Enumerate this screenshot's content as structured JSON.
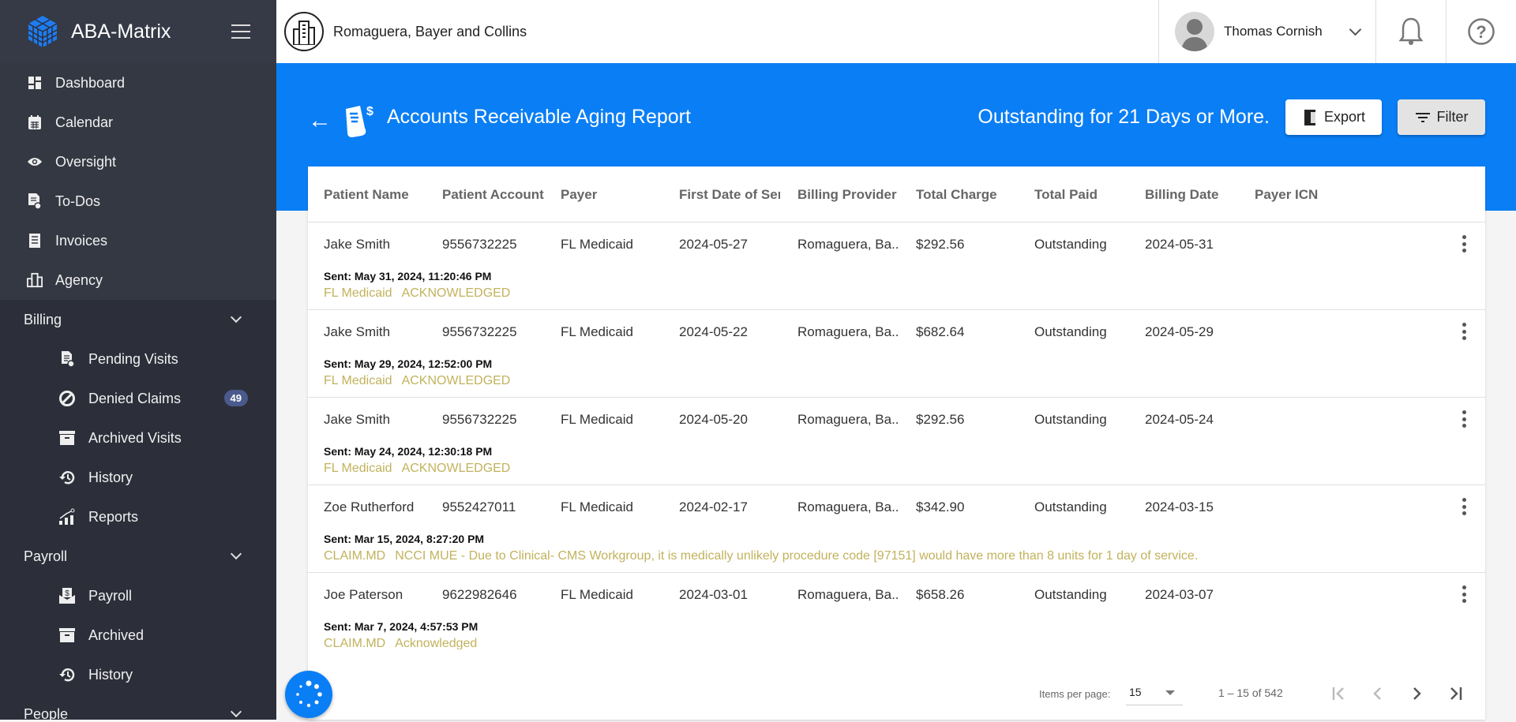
{
  "app": {
    "name": "ABA-Matrix",
    "brand_color": "#0a7ef5"
  },
  "sidebar": {
    "top_items": [
      {
        "label": "Dashboard",
        "icon": "dashboard-icon"
      },
      {
        "label": "Calendar",
        "icon": "calendar-icon"
      },
      {
        "label": "Oversight",
        "icon": "eye-icon"
      },
      {
        "label": "To-Dos",
        "icon": "todo-icon"
      },
      {
        "label": "Invoices",
        "icon": "invoice-icon"
      },
      {
        "label": "Agency",
        "icon": "building-icon"
      }
    ],
    "billing": {
      "label": "Billing",
      "items": [
        {
          "label": "Pending Visits",
          "icon": "pending-doc-icon"
        },
        {
          "label": "Denied Claims",
          "icon": "block-icon",
          "badge": "49"
        },
        {
          "label": "Archived Visits",
          "icon": "archive-icon"
        },
        {
          "label": "History",
          "icon": "history-icon"
        },
        {
          "label": "Reports",
          "icon": "chart-icon"
        }
      ]
    },
    "payroll": {
      "label": "Payroll",
      "items": [
        {
          "label": "Payroll",
          "icon": "payroll-icon"
        },
        {
          "label": "Archived",
          "icon": "archive-icon"
        },
        {
          "label": "History",
          "icon": "history-icon"
        }
      ]
    },
    "people": {
      "label": "People"
    }
  },
  "header": {
    "company": "Romaguera, Bayer and Collins",
    "user": "Thomas Cornish"
  },
  "banner": {
    "title": "Accounts Receivable Aging Report",
    "subtitle": "Outstanding for 21 Days or More.",
    "export_label": "Export",
    "filter_label": "Filter"
  },
  "table": {
    "columns": [
      "Patient Name",
      "Patient Account",
      "Payer",
      "First Date of Service",
      "Billing Provider Name",
      "Total Charge",
      "Total Paid",
      "Billing Date",
      "Payer ICN"
    ],
    "rows": [
      {
        "cells": [
          "Jake Smith",
          "9556732225",
          "FL Medicaid",
          "2024-05-27",
          "Romaguera, Ba...",
          "$292.56",
          "Outstanding",
          "2024-05-31",
          ""
        ],
        "sent": "Sent: May 31, 2024, 11:20:46 PM",
        "source": "FL Medicaid",
        "status": "ACKNOWLEDGED"
      },
      {
        "cells": [
          "Jake Smith",
          "9556732225",
          "FL Medicaid",
          "2024-05-22",
          "Romaguera, Ba...",
          "$682.64",
          "Outstanding",
          "2024-05-29",
          ""
        ],
        "sent": "Sent: May 29, 2024, 12:52:00 PM",
        "source": "FL Medicaid",
        "status": "ACKNOWLEDGED"
      },
      {
        "cells": [
          "Jake Smith",
          "9556732225",
          "FL Medicaid",
          "2024-05-20",
          "Romaguera, Ba...",
          "$292.56",
          "Outstanding",
          "2024-05-24",
          ""
        ],
        "sent": "Sent: May 24, 2024, 12:30:18 PM",
        "source": "FL Medicaid",
        "status": "ACKNOWLEDGED"
      },
      {
        "cells": [
          "Zoe Rutherford",
          "9552427011",
          "FL Medicaid",
          "2024-02-17",
          "Romaguera, Ba...",
          "$342.90",
          "Outstanding",
          "2024-03-15",
          ""
        ],
        "sent": "Sent: Mar 15, 2024, 8:27:20 PM",
        "source": "CLAIM.MD",
        "status": "NCCI MUE - Due to Clinical- CMS Workgroup, it is medically unlikely procedure code [97151] would have more than 8 units for 1 day of service."
      },
      {
        "cells": [
          "Joe Paterson",
          "9622982646",
          "FL Medicaid",
          "2024-03-01",
          "Romaguera, Ba...",
          "$658.26",
          "Outstanding",
          "2024-03-07",
          ""
        ],
        "sent": "Sent: Mar 7, 2024, 4:57:53 PM",
        "source": "CLAIM.MD",
        "status": "Acknowledged"
      }
    ],
    "status_color": "#c2b25c"
  },
  "paginator": {
    "items_per_page_label": "Items per page:",
    "items_per_page": "15",
    "range": "1 – 15 of 542"
  }
}
